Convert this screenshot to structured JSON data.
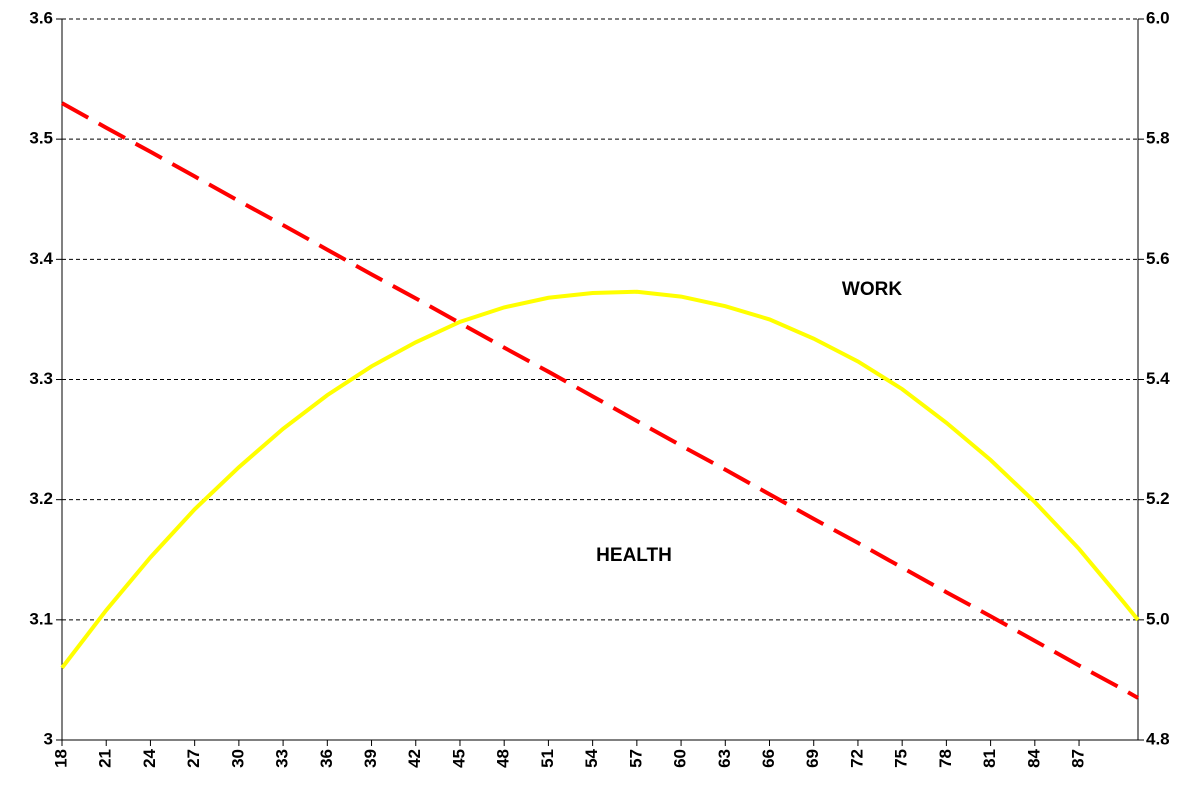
{
  "chart_data": {
    "type": "line",
    "x": [
      18,
      21,
      24,
      27,
      30,
      33,
      36,
      39,
      42,
      45,
      48,
      51,
      54,
      57,
      60,
      63,
      66,
      69,
      72,
      75,
      78,
      81,
      84,
      87,
      90,
      91
    ],
    "xlim": [
      18,
      91
    ],
    "xticks": [
      18,
      21,
      24,
      27,
      30,
      33,
      36,
      39,
      42,
      45,
      48,
      51,
      54,
      57,
      60,
      63,
      66,
      69,
      72,
      75,
      78,
      81,
      84,
      87
    ],
    "ylim": [
      3,
      3.6
    ],
    "yticks": [
      3,
      3.1,
      3.2,
      3.3,
      3.4,
      3.5,
      3.6
    ],
    "y2lim": [
      4.8,
      6
    ],
    "y2ticks": [
      4.8,
      {
        "value": 5,
        "label": "5.0"
      },
      5.2,
      5.4,
      5.6,
      5.8,
      {
        "value": 6,
        "label": "6.0"
      }
    ],
    "grid": true,
    "series": [
      {
        "name": "WORK",
        "color": "#ffff00",
        "axis": "y",
        "values": [
          3.06,
          3.108,
          3.152,
          3.192,
          3.227,
          3.259,
          3.287,
          3.311,
          3.331,
          3.348,
          3.36,
          3.368,
          3.372,
          3.373,
          3.369,
          3.361,
          3.35,
          3.334,
          3.315,
          3.292,
          3.264,
          3.233,
          3.198,
          3.159,
          3.115,
          3.1
        ]
      },
      {
        "name": "HEALTH",
        "color": "#ff0000",
        "axis": "y2",
        "dashed": true,
        "values": [
          5.86,
          5.819,
          5.779,
          5.738,
          5.697,
          5.657,
          5.616,
          5.575,
          5.535,
          5.494,
          5.453,
          5.413,
          5.372,
          5.331,
          5.29,
          5.25,
          5.209,
          5.168,
          5.128,
          5.087,
          5.046,
          5.006,
          4.965,
          4.924,
          4.884,
          4.87
        ]
      }
    ]
  }
}
